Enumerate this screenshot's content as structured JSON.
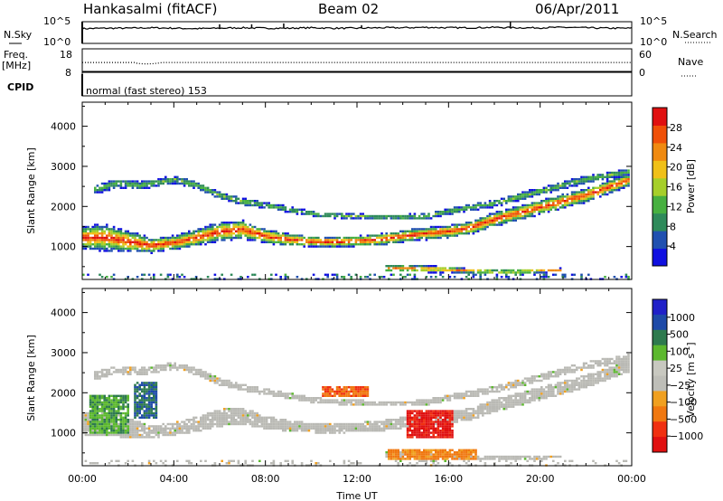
{
  "header": {
    "title": "Hankasalmi (fitACF)",
    "beam": "Beam 02",
    "date": "06/Apr/2011"
  },
  "left_labels": {
    "nsky": "N.Sky",
    "freq": "Freq.",
    "freq_unit": "[MHz]",
    "cpid": "CPID"
  },
  "right_labels": {
    "nsearch": "N.Search",
    "nave": "Nave"
  },
  "cpid_text": "normal (fast stereo) 153",
  "colors": {
    "power": [
      "#1010e0",
      "#2050b0",
      "#2e8a5a",
      "#47b040",
      "#a6cf2a",
      "#f0c018",
      "#f08a10",
      "#f05008",
      "#e01010"
    ],
    "velocity": [
      "#2020c8",
      "#1e4aa8",
      "#2e7a4e",
      "#5cb82e",
      "#c8c8c0",
      "#bebeb8",
      "#f0a020",
      "#f07810",
      "#f03010",
      "#e01010"
    ],
    "gray": "#b9b9b4"
  },
  "chart_data": [
    {
      "type": "line",
      "name": "nsky-nsearch",
      "ylim_labels": [
        "10^0",
        "10^5"
      ],
      "right_ylim_labels": [
        "10^0",
        "10^5"
      ],
      "x": [
        0,
        1,
        2,
        3,
        4,
        5,
        6,
        7,
        8,
        9,
        10,
        11,
        12,
        13,
        14,
        15,
        16,
        17,
        18,
        19,
        20,
        21,
        22,
        23,
        24
      ],
      "values": [
        3.4,
        3.5,
        3.5,
        3.6,
        3.5,
        3.4,
        3.5,
        3.6,
        3.5,
        3.5,
        3.6,
        3.5,
        3.5,
        3.6,
        3.6,
        3.7,
        3.6,
        3.6,
        3.7,
        3.6,
        3.6,
        3.7,
        3.6,
        3.5,
        3.5
      ],
      "spikes": [
        [
          6.0,
          4.4
        ],
        [
          7.4,
          4.4
        ],
        [
          8.8,
          4.6
        ],
        [
          12.2,
          4.2
        ],
        [
          18.7,
          4.9
        ]
      ]
    },
    {
      "type": "line",
      "name": "freq-nave",
      "left_ticks": [
        "8",
        "18"
      ],
      "right_ticks": [
        "0",
        "60"
      ],
      "freq_x": [
        0,
        2.3,
        2.4,
        2.7,
        2.9,
        3.1,
        3.3,
        3.5,
        4,
        8,
        12,
        16,
        20,
        24
      ],
      "freq_y": [
        12.2,
        12.2,
        11.8,
        11.6,
        11.6,
        11.7,
        11.9,
        12.2,
        12.2,
        12.2,
        12.2,
        12.2,
        12.2,
        12.2
      ]
    },
    {
      "type": "heatmap",
      "name": "power",
      "ylabel": "Slant Range [km]",
      "yticks": [
        "1000",
        "2000",
        "3000",
        "4000"
      ],
      "ytick_values": [
        1000,
        2000,
        3000,
        4000
      ],
      "ylim": [
        180,
        4600
      ],
      "xlim": [
        0,
        24
      ],
      "colorbar": {
        "label": "Power [dB]",
        "ticks": [
          "4",
          "8",
          "12",
          "16",
          "20",
          "24",
          "28"
        ],
        "range": [
          0,
          32
        ]
      },
      "bands": [
        {
          "x": [
            0,
            1,
            2,
            3,
            4,
            5,
            6,
            7,
            8,
            9,
            10,
            11,
            12,
            13,
            14,
            15,
            16,
            17,
            18,
            19,
            20,
            21,
            22,
            23,
            24
          ],
          "center": [
            1250,
            1250,
            1150,
            1050,
            1120,
            1250,
            1400,
            1450,
            1280,
            1200,
            1150,
            1140,
            1160,
            1200,
            1280,
            1350,
            1400,
            1500,
            1700,
            1850,
            2000,
            2150,
            2300,
            2500,
            2700
          ],
          "width": [
            500,
            550,
            450,
            300,
            300,
            350,
            400,
            380,
            300,
            250,
            220,
            220,
            220,
            240,
            250,
            260,
            260,
            280,
            300,
            300,
            300,
            300,
            300,
            280,
            250
          ],
          "peak": 30
        },
        {
          "x": [
            13.2,
            14,
            15,
            16,
            17,
            18,
            19,
            20,
            21
          ],
          "center": [
            480,
            480,
            470,
            450,
            420,
            400,
            400,
            420,
            440
          ],
          "width": [
            160,
            150,
            150,
            120,
            100,
            90,
            90,
            90,
            80
          ],
          "peak": 26
        },
        {
          "x": [
            0.5,
            1.5,
            2.5,
            4,
            5,
            6,
            7,
            8,
            9,
            10,
            11,
            12,
            13,
            14,
            15,
            16,
            17,
            18,
            19,
            20,
            21,
            22,
            23,
            24
          ],
          "center": [
            2450,
            2600,
            2550,
            2700,
            2550,
            2300,
            2150,
            2050,
            1950,
            1850,
            1800,
            1780,
            1760,
            1760,
            1780,
            1900,
            2000,
            2100,
            2250,
            2400,
            2550,
            2700,
            2800,
            2900
          ],
          "width": [
            200,
            180,
            180,
            160,
            160,
            160,
            150,
            140,
            130,
            120,
            120,
            120,
            120,
            120,
            130,
            140,
            150,
            160,
            160,
            160,
            170,
            170,
            170,
            160
          ],
          "peak": 14
        }
      ]
    },
    {
      "type": "heatmap",
      "name": "velocity",
      "ylabel": "Slant Range [km]",
      "yticks": [
        "1000",
        "2000",
        "3000",
        "4000"
      ],
      "ytick_values": [
        1000,
        2000,
        3000,
        4000
      ],
      "ylim": [
        180,
        4600
      ],
      "xlim": [
        0,
        24
      ],
      "xticks": [
        "00:00",
        "04:00",
        "08:00",
        "12:00",
        "16:00",
        "20:00",
        "00:00"
      ],
      "xtick_values": [
        0,
        4,
        8,
        12,
        16,
        20,
        24
      ],
      "xlabel": "Time UT",
      "colorbar": {
        "label": "Velocity [m s",
        "label_sup": "-1",
        "label_end": "]",
        "ticks": [
          "1000",
          "500",
          "100",
          "25",
          "−25",
          "−100",
          "−500",
          "−1000"
        ]
      },
      "features": [
        {
          "kind": "orange",
          "x": [
            13.3,
            17.3
          ],
          "y": [
            360,
            620
          ]
        },
        {
          "kind": "red",
          "x": [
            14.2,
            16.2
          ],
          "y": [
            900,
            1600
          ]
        },
        {
          "kind": "orange_speck",
          "x": [
            10.5,
            12.5
          ],
          "y": [
            1900,
            2200
          ]
        },
        {
          "kind": "green",
          "x": [
            0.3,
            2.0
          ],
          "y": [
            1000,
            2000
          ]
        },
        {
          "kind": "blue",
          "x": [
            2.2,
            3.2
          ],
          "y": [
            1400,
            2300
          ]
        }
      ]
    }
  ]
}
